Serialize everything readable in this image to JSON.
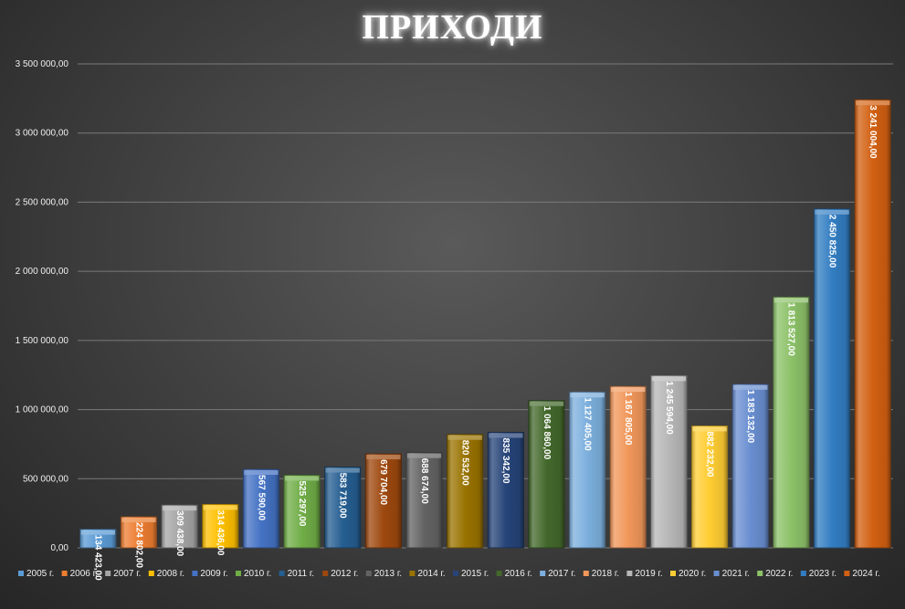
{
  "chart_data": {
    "type": "bar",
    "title": "ПРИХОДИ",
    "ylim": [
      0,
      3500000
    ],
    "yticks": [
      "0,00",
      "500 000,00",
      "1 000 000,00",
      "1 500 000,00",
      "2 000 000,00",
      "2 500 000,00",
      "3 000 000,00",
      "3 500 000,00"
    ],
    "grid": true,
    "legend_position": "bottom",
    "categories": [
      "2005 г.",
      "2006 г.",
      "2007 г.",
      "2008 г.",
      "2009 г.",
      "2010 г.",
      "2011 г.",
      "2012 г.",
      "2013 г.",
      "2014 г.",
      "2015 г.",
      "2016 г.",
      "2017 г.",
      "2018 г.",
      "2019 г.",
      "2020 г.",
      "2021 г.",
      "2022 г.",
      "2023 г.",
      "2024 г."
    ],
    "values": [
      134423,
      224802,
      309438,
      314436,
      567590,
      525297,
      583719,
      679704,
      688674,
      820532,
      835342,
      1064860,
      1127405,
      1167805,
      1245594,
      882232,
      1183132,
      1813527,
      2450825,
      3241004
    ],
    "data_labels": [
      "134 423,00",
      "224 802,00",
      "309 438,00",
      "314 436,00",
      "567 590,00",
      "525 297,00",
      "583 719,00",
      "679 704,00",
      "688 674,00",
      "820 532,00",
      "835 342,00",
      "1 064 860,00",
      "1 127 405,00",
      "1 167 805,00",
      "1 245 594,00",
      "882 232,00",
      "1 183 132,00",
      "1 813 527,00",
      "2 450 825,00",
      "3 241 004,00"
    ],
    "colors": [
      "#5b9bd5",
      "#ed7d31",
      "#a5a5a5",
      "#ffc000",
      "#4472c4",
      "#70ad47",
      "#255e91",
      "#9e480e",
      "#636363",
      "#997300",
      "#264478",
      "#43682b",
      "#7cafdd",
      "#f1975a",
      "#b7b7b7",
      "#ffcd33",
      "#698ed0",
      "#8cc168",
      "#327dc2",
      "#d26012"
    ]
  }
}
